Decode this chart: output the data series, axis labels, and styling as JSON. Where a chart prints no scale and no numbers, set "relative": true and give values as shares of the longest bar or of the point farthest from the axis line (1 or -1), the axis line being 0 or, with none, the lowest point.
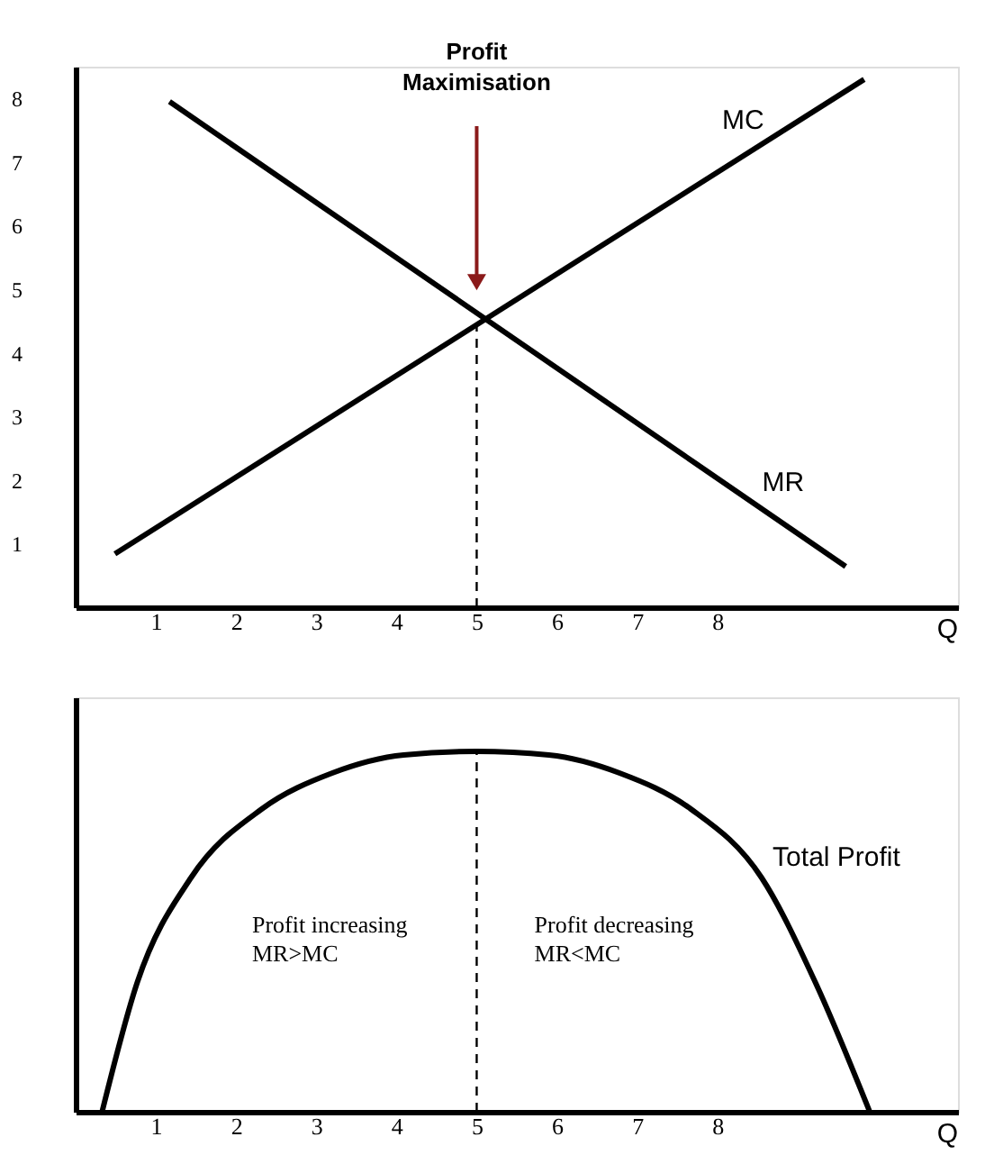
{
  "chart_data": [
    {
      "type": "line",
      "xlabel": "Q",
      "xlim": [
        0,
        11
      ],
      "xticks": [
        1,
        2,
        3,
        4,
        5,
        6,
        7,
        8
      ],
      "ylim": [
        0,
        8.5
      ],
      "yticks": [
        1,
        2,
        3,
        4,
        5,
        6,
        7,
        8
      ],
      "grid": false,
      "series": [
        {
          "name": "MC",
          "color": "#000000",
          "x": [
            0.49,
            9.83
          ],
          "values": [
            0.84,
            8.3
          ]
        },
        {
          "name": "MR",
          "color": "#000000",
          "x": [
            1.17,
            9.6
          ],
          "values": [
            7.95,
            0.64
          ]
        }
      ],
      "ref_lines": [
        {
          "axis": "x",
          "value": 5,
          "line_style": "dashed",
          "color": "#000000"
        }
      ],
      "annotations": [
        "Profit\nMaximisation"
      ]
    },
    {
      "type": "line",
      "relative": true,
      "xlabel": "Q",
      "xlim": [
        0,
        11
      ],
      "xticks": [
        1,
        2,
        3,
        4,
        5,
        6,
        7,
        8
      ],
      "tick_labels": "x",
      "grid": false,
      "series": [
        {
          "name": "Total Profit",
          "color": "#000000",
          "x": [
            0.33,
            0.77,
            1.44,
            2.32,
            3.2,
            4.09,
            5,
            5.9,
            6.78,
            7.67,
            8.55,
            9.22,
            9.9
          ],
          "values": [
            0,
            0.36,
            0.65,
            0.84,
            0.94,
            0.99,
            1,
            0.99,
            0.94,
            0.84,
            0.65,
            0.36,
            0
          ]
        }
      ],
      "ref_lines": [
        {
          "axis": "x",
          "value": 5,
          "line_style": "dashed",
          "color": "#000000"
        }
      ],
      "annotations": [
        "Profit increasing\nMR>MC",
        "Profit decreasing\nMR<MC"
      ]
    }
  ]
}
